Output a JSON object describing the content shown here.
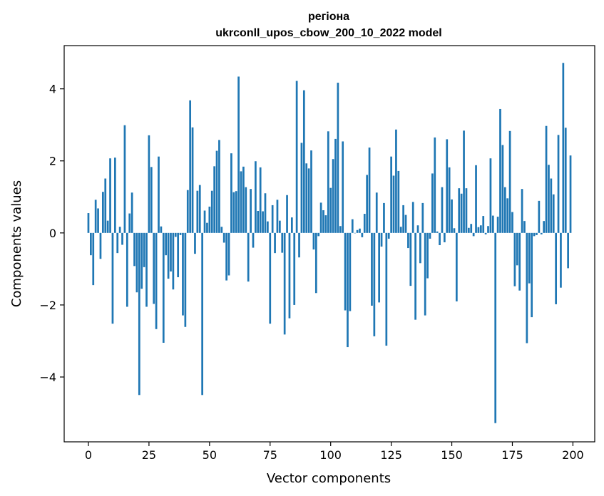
{
  "chart_data": {
    "type": "bar",
    "title_line1": "регіона",
    "title_line2": "ukrconll_upos_cbow_200_10_2022 model",
    "xlabel": "Vector components",
    "ylabel": "Components values",
    "xlim": [
      -10,
      209
    ],
    "ylim": [
      -5.8,
      5.2
    ],
    "xticks": [
      0,
      25,
      50,
      75,
      100,
      125,
      150,
      175,
      200
    ],
    "xtick_labels": [
      "0",
      "25",
      "50",
      "75",
      "100",
      "125",
      "150",
      "175",
      "200"
    ],
    "yticks": [
      -4,
      -2,
      0,
      2,
      4
    ],
    "ytick_labels": [
      "−4",
      "−2",
      "0",
      "2",
      "4"
    ],
    "grid": false,
    "bar_color": "#1f77b4",
    "x": [
      0,
      1,
      2,
      3,
      4,
      5,
      6,
      7,
      8,
      9,
      10,
      11,
      12,
      13,
      14,
      15,
      16,
      17,
      18,
      19,
      20,
      21,
      22,
      23,
      24,
      25,
      26,
      27,
      28,
      29,
      30,
      31,
      32,
      33,
      34,
      35,
      36,
      37,
      38,
      39,
      40,
      41,
      42,
      43,
      44,
      45,
      46,
      47,
      48,
      49,
      50,
      51,
      52,
      53,
      54,
      55,
      56,
      57,
      58,
      59,
      60,
      61,
      62,
      63,
      64,
      65,
      66,
      67,
      68,
      69,
      70,
      71,
      72,
      73,
      74,
      75,
      76,
      77,
      78,
      79,
      80,
      81,
      82,
      83,
      84,
      85,
      86,
      87,
      88,
      89,
      90,
      91,
      92,
      93,
      94,
      95,
      96,
      97,
      98,
      99,
      100,
      101,
      102,
      103,
      104,
      105,
      106,
      107,
      108,
      109,
      110,
      111,
      112,
      113,
      114,
      115,
      116,
      117,
      118,
      119,
      120,
      121,
      122,
      123,
      124,
      125,
      126,
      127,
      128,
      129,
      130,
      131,
      132,
      133,
      134,
      135,
      136,
      137,
      138,
      139,
      140,
      141,
      142,
      143,
      144,
      145,
      146,
      147,
      148,
      149,
      150,
      151,
      152,
      153,
      154,
      155,
      156,
      157,
      158,
      159,
      160,
      161,
      162,
      163,
      164,
      165,
      166,
      167,
      168,
      169,
      170,
      171,
      172,
      173,
      174,
      175,
      176,
      177,
      178,
      179,
      180,
      181,
      182,
      183,
      184,
      185,
      186,
      187,
      188,
      189,
      190,
      191,
      192,
      193,
      194,
      195,
      196,
      197,
      198,
      199
    ],
    "values": [
      0.55,
      -0.62,
      -1.45,
      0.92,
      0.68,
      -0.72,
      1.14,
      1.51,
      0.34,
      2.07,
      -2.52,
      2.09,
      -0.56,
      0.17,
      -0.33,
      2.99,
      -2.05,
      0.54,
      1.12,
      -0.92,
      -1.65,
      -4.5,
      -1.55,
      -0.95,
      -2.05,
      2.71,
      1.83,
      -1.97,
      -2.67,
      2.12,
      0.18,
      -3.05,
      -0.62,
      -1.27,
      -1.07,
      -1.57,
      -0.11,
      -1.23,
      -0.06,
      -2.29,
      -2.61,
      1.19,
      3.68,
      2.93,
      -0.58,
      1.17,
      1.33,
      -4.5,
      0.62,
      0.28,
      0.73,
      1.17,
      1.85,
      2.28,
      2.58,
      0.17,
      -0.27,
      -1.32,
      -1.18,
      2.21,
      1.13,
      1.16,
      4.34,
      1.71,
      1.84,
      1.27,
      -1.35,
      1.22,
      -0.41,
      1.99,
      0.61,
      1.82,
      0.6,
      1.1,
      0.32,
      -2.52,
      0.77,
      -0.56,
      0.92,
      0.34,
      -0.55,
      -2.82,
      1.05,
      -2.37,
      0.43,
      -2.0,
      4.22,
      -0.68,
      2.5,
      3.96,
      1.93,
      1.79,
      2.29,
      -0.46,
      -1.67,
      -0.09,
      0.84,
      0.63,
      0.49,
      2.82,
      1.25,
      2.05,
      2.61,
      4.17,
      0.19,
      2.54,
      -2.15,
      -3.17,
      -2.17,
      0.38,
      -0.01,
      0.08,
      0.12,
      -0.12,
      0.53,
      1.61,
      2.37,
      -2.02,
      -2.87,
      1.12,
      -1.93,
      -0.38,
      0.83,
      -3.13,
      -0.16,
      2.12,
      1.59,
      2.87,
      1.72,
      0.17,
      0.77,
      0.5,
      -0.42,
      -1.47,
      0.86,
      -2.41,
      0.21,
      -0.84,
      0.83,
      -2.29,
      -1.26,
      -0.16,
      1.65,
      2.65,
      0.04,
      -0.34,
      1.27,
      -0.26,
      2.6,
      1.82,
      0.93,
      0.13,
      -1.9,
      1.24,
      1.09,
      2.84,
      1.24,
      0.14,
      0.25,
      -0.09,
      1.88,
      0.16,
      0.21,
      0.47,
      -0.04,
      0.19,
      2.07,
      0.48,
      -5.28,
      0.45,
      3.44,
      2.44,
      1.27,
      0.96,
      2.83,
      0.58,
      -1.48,
      -0.9,
      -1.6,
      1.22,
      0.33,
      -3.06,
      -1.4,
      -2.34,
      -0.09,
      -0.06,
      0.89,
      -0.04,
      0.33,
      2.97,
      1.89,
      1.51,
      1.07,
      -1.98,
      2.72,
      -1.52,
      4.72,
      2.92,
      -0.98,
      2.15
    ]
  }
}
